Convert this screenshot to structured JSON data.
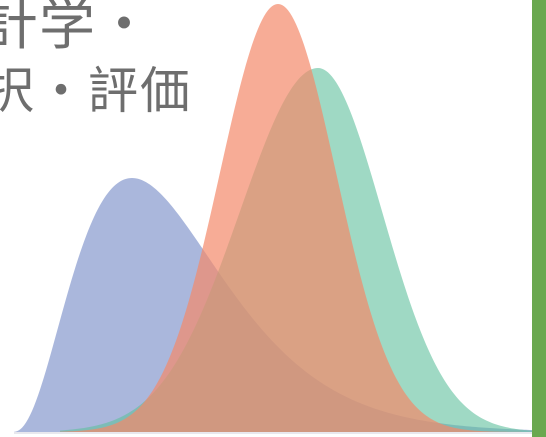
{
  "title": {
    "line1": "計学・",
    "line2": "択・評価"
  },
  "colors": {
    "background": "#ffffff",
    "text": "#6e6e6e",
    "accent_bar": "#6aa84f",
    "curve_blue": "#8e9fd0",
    "curve_orange": "#f4896a",
    "curve_green": "#5fbf9c"
  },
  "distributions": [
    {
      "name": "",
      "color_key": "curve_blue",
      "opacity": 0.75
    },
    {
      "name": "",
      "color_key": "curve_orange",
      "opacity": 0.7
    },
    {
      "name": "",
      "color_key": "curve_green",
      "opacity": 0.6
    }
  ]
}
